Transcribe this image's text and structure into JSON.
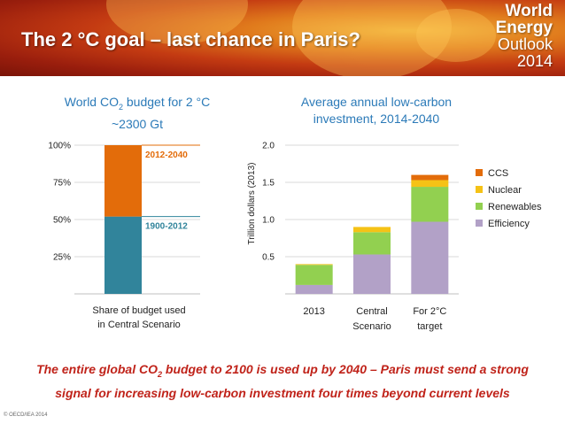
{
  "header": {
    "title": "The 2 °C goal –  last chance in Paris?",
    "brand_line1": "World",
    "brand_line2": "Energy",
    "brand_line3": "Outlook",
    "brand_line4": "2014"
  },
  "left_chart": {
    "title_line1_a": "World CO",
    "title_line1_sub": "2",
    "title_line1_b": " budget for 2 °C",
    "title_line2": "~2300 Gt"
  },
  "right_chart": {
    "title_line1": "Average annual low-carbon",
    "title_line2": "investment, 2014-2040"
  },
  "chart_data": [
    {
      "type": "bar",
      "stacked": true,
      "categories": [
        "Share of budget used in Central Scenario"
      ],
      "category_lines": [
        [
          "Share of budget used",
          "in Central Scenario"
        ]
      ],
      "series": [
        {
          "name": "1900-2012",
          "values": [
            52
          ],
          "color": "#31849b"
        },
        {
          "name": "2012-2040",
          "values": [
            48
          ],
          "color": "#e36c0a"
        }
      ],
      "ylim": [
        0,
        100
      ],
      "yticks": [
        25,
        50,
        75,
        100
      ],
      "ytick_labels": [
        "25%",
        "50%",
        "75%",
        "100%"
      ],
      "grid": true,
      "legend": "inline-right"
    },
    {
      "type": "bar",
      "stacked": true,
      "categories": [
        "2013",
        "Central Scenario",
        "For 2°C target"
      ],
      "category_lines": [
        [
          "2013"
        ],
        [
          "Central",
          "Scenario"
        ],
        [
          "For 2°C",
          "target"
        ]
      ],
      "ylabel": "Trillion dollars (2013)",
      "ylim": [
        0,
        2.0
      ],
      "yticks": [
        0.5,
        1.0,
        1.5,
        2.0
      ],
      "ytick_labels": [
        "0.5",
        "1.0",
        "1.5",
        "2.0"
      ],
      "series": [
        {
          "name": "Efficiency",
          "values": [
            0.12,
            0.53,
            0.97
          ],
          "color": "#b2a1c7"
        },
        {
          "name": "Renewables",
          "values": [
            0.27,
            0.3,
            0.47
          ],
          "color": "#92d050"
        },
        {
          "name": "Nuclear",
          "values": [
            0.01,
            0.07,
            0.09
          ],
          "color": "#f5c216"
        },
        {
          "name": "CCS",
          "values": [
            0.0,
            0.0,
            0.07
          ],
          "color": "#e36c0a"
        }
      ],
      "legend_order": [
        "CCS",
        "Nuclear",
        "Renewables",
        "Efficiency"
      ],
      "grid": true,
      "legend": "right"
    }
  ],
  "bottom_message": {
    "line1_a": "The entire global CO",
    "line1_sub": "2",
    "line1_b": " budget to 2100 is used up by 2040  – Paris must send a strong",
    "line2": "signal for increasing low-carbon investment four times beyond current levels"
  },
  "copyright": "© OECD/IEA 2014"
}
